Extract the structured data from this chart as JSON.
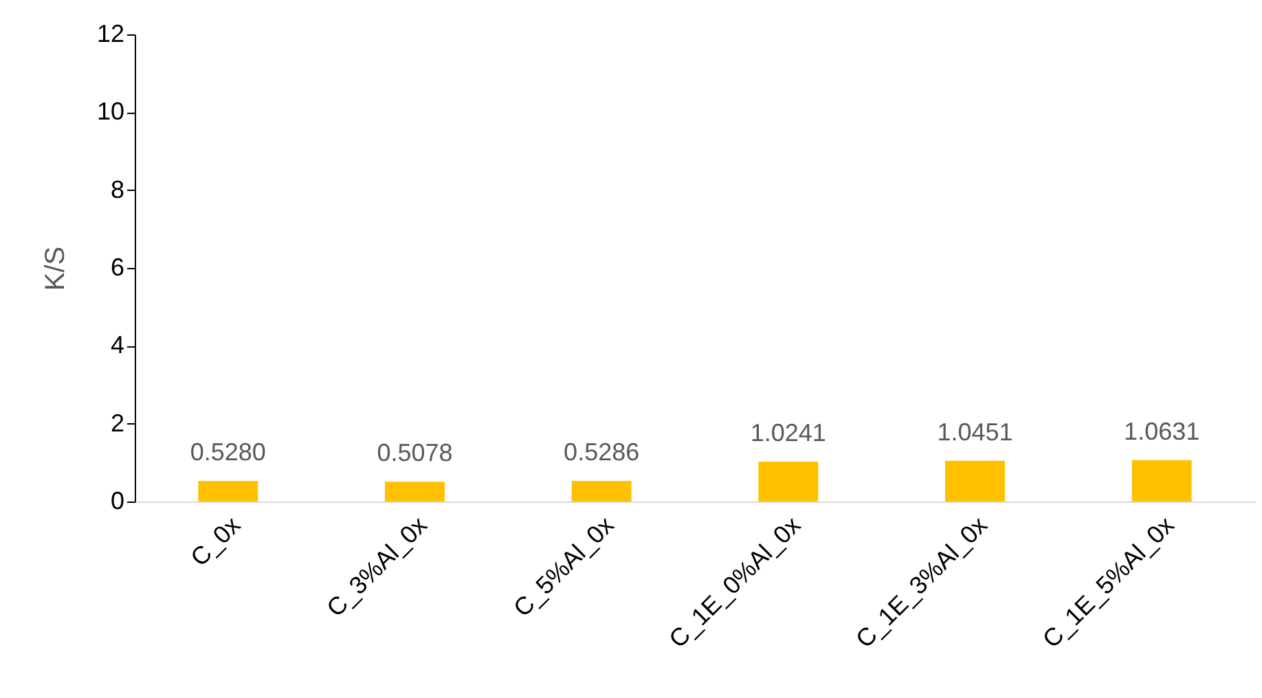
{
  "chart_data": {
    "type": "bar",
    "ylabel": "K/S",
    "categories": [
      "C_0x",
      "C_3%Al_0x",
      "C_5%Al_0x",
      "C_1E_0%Al_0x",
      "C_1E_3%Al_0x",
      "C_1E_5%Al_0x"
    ],
    "values": [
      0.528,
      0.5078,
      0.5286,
      1.0241,
      1.0451,
      1.0631
    ],
    "value_labels": [
      "0.5280",
      "0.5078",
      "0.5286",
      "1.0241",
      "1.0451",
      "1.0631"
    ],
    "color": "#ffc000",
    "ylim": [
      0,
      12
    ],
    "yticks": [
      0,
      2,
      4,
      6,
      8,
      10,
      12
    ],
    "grid": false
  }
}
